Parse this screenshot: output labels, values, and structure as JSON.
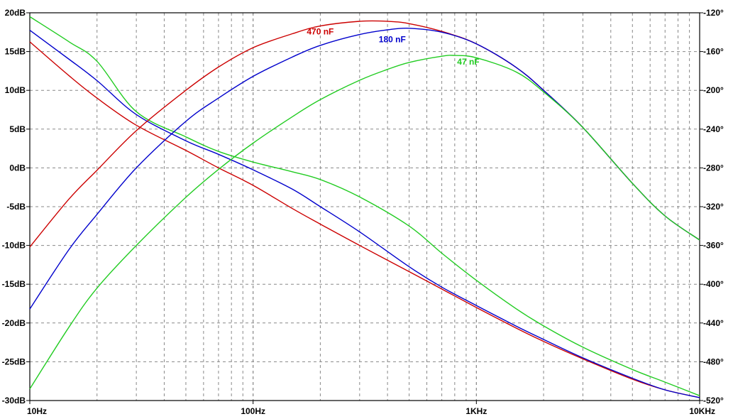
{
  "chart_data": {
    "type": "line",
    "x_scale": "log",
    "xlim": [
      10,
      10000
    ],
    "ylim_left": [
      -30,
      20
    ],
    "ylim_right": [
      -520,
      -120
    ],
    "grid": true,
    "x_ticks": [
      {
        "value": 10,
        "label": "10Hz"
      },
      {
        "value": 100,
        "label": "100Hz"
      },
      {
        "value": 1000,
        "label": "1KHz"
      },
      {
        "value": 10000,
        "label": "10KHz"
      }
    ],
    "left_ticks": [
      {
        "value": 20,
        "label": "20dB"
      },
      {
        "value": 15,
        "label": "15dB"
      },
      {
        "value": 10,
        "label": "10dB"
      },
      {
        "value": 5,
        "label": "5dB"
      },
      {
        "value": 0,
        "label": "0dB"
      },
      {
        "value": -5,
        "label": "-5dB"
      },
      {
        "value": -10,
        "label": "-10dB"
      },
      {
        "value": -15,
        "label": "-15dB"
      },
      {
        "value": -20,
        "label": "-20dB"
      },
      {
        "value": -25,
        "label": "-25dB"
      },
      {
        "value": -30,
        "label": "-30dB"
      }
    ],
    "right_ticks": [
      {
        "value": -120,
        "label": "-120°"
      },
      {
        "value": -160,
        "label": "-160°"
      },
      {
        "value": -200,
        "label": "-200°"
      },
      {
        "value": -240,
        "label": "-240°"
      },
      {
        "value": -280,
        "label": "-280°"
      },
      {
        "value": -320,
        "label": "-320°"
      },
      {
        "value": -360,
        "label": "-360°"
      },
      {
        "value": -400,
        "label": "-400°"
      },
      {
        "value": -440,
        "label": "-440°"
      },
      {
        "value": -480,
        "label": "-480°"
      },
      {
        "value": -520,
        "label": "-520°"
      }
    ],
    "series": [
      {
        "name": "470 nF",
        "color": "#cc0000",
        "label_at": {
          "x": 200,
          "y": 17.2
        },
        "magnitude_db": {
          "x": [
            10,
            15,
            20,
            30,
            50,
            70,
            100,
            150,
            200,
            300,
            400,
            500,
            700,
            1000,
            1500,
            2000,
            3000,
            5000,
            7000,
            10000
          ],
          "y": [
            -10.2,
            -4.0,
            -0.3,
            4.8,
            10.0,
            13.0,
            15.5,
            17.3,
            18.3,
            18.9,
            18.9,
            18.6,
            17.6,
            16.0,
            13.0,
            10.0,
            5.2,
            -2.0,
            -6.2,
            -9.3
          ]
        },
        "phase_deg": {
          "x": [
            10,
            15,
            20,
            30,
            50,
            70,
            100,
            150,
            200,
            300,
            500,
            700,
            1000,
            1500,
            2000,
            3000,
            5000,
            7000,
            10000
          ],
          "y": [
            -150,
            -185,
            -208,
            -236,
            -262,
            -280,
            -298,
            -322,
            -338,
            -360,
            -387,
            -405,
            -424,
            -445,
            -459,
            -477,
            -498,
            -509,
            -517
          ]
        }
      },
      {
        "name": "180 nF",
        "color": "#0000cc",
        "label_at": {
          "x": 420,
          "y": 16.2
        },
        "magnitude_db": {
          "x": [
            10,
            15,
            20,
            30,
            50,
            70,
            100,
            150,
            200,
            300,
            400,
            500,
            700,
            1000,
            1500,
            2000,
            3000,
            5000,
            7000,
            10000
          ],
          "y": [
            -18.2,
            -10.5,
            -6.0,
            0.0,
            6.0,
            9.0,
            11.8,
            14.3,
            15.8,
            17.2,
            17.8,
            18.0,
            17.5,
            16.0,
            13.0,
            10.0,
            5.2,
            -2.0,
            -6.2,
            -9.3
          ]
        },
        "phase_deg": {
          "x": [
            10,
            15,
            20,
            30,
            50,
            70,
            100,
            150,
            200,
            300,
            500,
            700,
            1000,
            1500,
            2000,
            3000,
            5000,
            7000,
            10000
          ],
          "y": [
            -138,
            -168,
            -190,
            -225,
            -252,
            -266,
            -282,
            -302,
            -320,
            -346,
            -382,
            -403,
            -422,
            -443,
            -457,
            -476,
            -497,
            -509,
            -517
          ]
        }
      },
      {
        "name": "47 nF",
        "color": "#22cc22",
        "label_at": {
          "x": 920,
          "y": 13.3
        },
        "magnitude_db": {
          "x": [
            10,
            15,
            20,
            30,
            50,
            70,
            100,
            150,
            200,
            300,
            400,
            500,
            700,
            800,
            1000,
            1500,
            2000,
            3000,
            5000,
            7000,
            10000
          ],
          "y": [
            -28.5,
            -20.5,
            -15.5,
            -10.0,
            -3.8,
            -0.2,
            3.2,
            6.6,
            8.8,
            11.3,
            12.7,
            13.6,
            14.4,
            14.5,
            14.2,
            12.4,
            9.8,
            5.2,
            -2.0,
            -6.2,
            -9.3
          ]
        },
        "phase_deg": {
          "x": [
            10,
            15,
            20,
            30,
            50,
            70,
            100,
            150,
            200,
            300,
            500,
            700,
            1000,
            1500,
            2000,
            3000,
            5000,
            7000,
            10000
          ],
          "y": [
            -124,
            -150,
            -170,
            -222,
            -248,
            -263,
            -274,
            -284,
            -292,
            -310,
            -340,
            -368,
            -396,
            -425,
            -443,
            -465,
            -488,
            -501,
            -515
          ]
        }
      }
    ]
  }
}
